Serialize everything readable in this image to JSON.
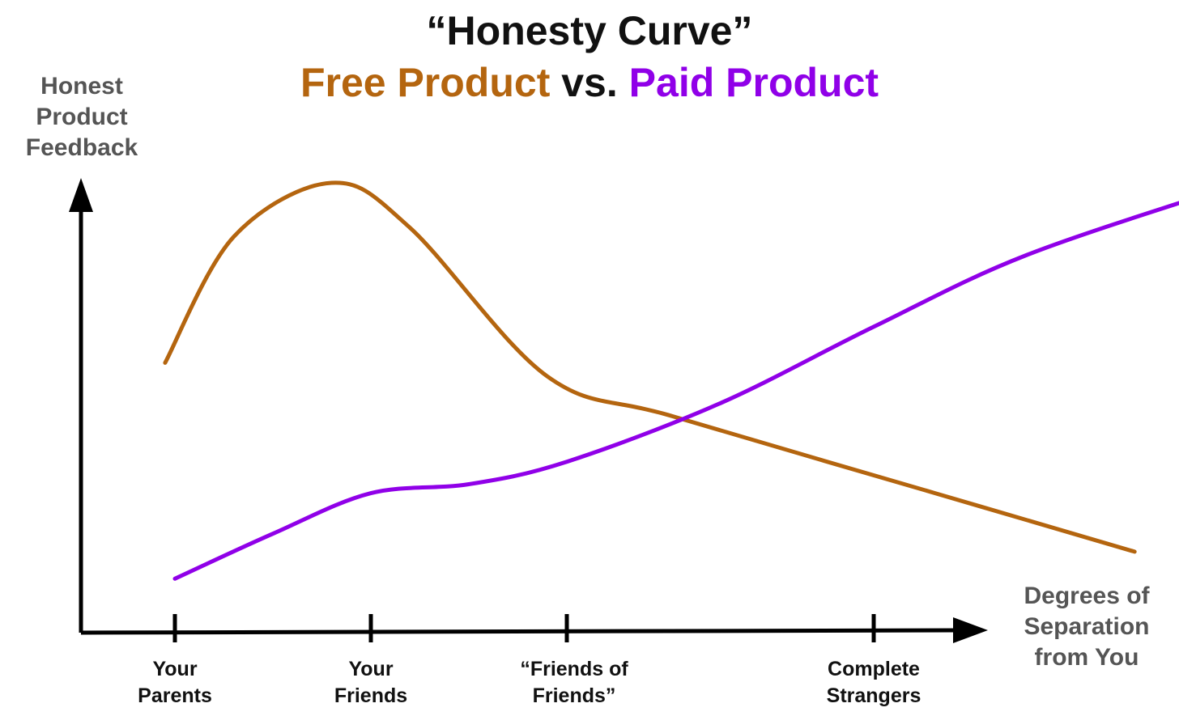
{
  "chart_data": {
    "type": "line",
    "title": "“Honesty Curve”",
    "subtitle": {
      "part1": "Free Product",
      "part2": " vs. ",
      "part3": "Paid Product"
    },
    "ylabel": "Honest\nProduct\nFeedback",
    "xlabel": "Degrees of\nSeparation\nfrom You",
    "categories": [
      "Your\nParents",
      "Your\nFriends",
      "“Friends of\nFriends”",
      "Complete\nStrangers"
    ],
    "grid": false,
    "legend": "none",
    "series": [
      {
        "name": "Free Product",
        "color": "#b4650f",
        "points": [
          [
            -0.05,
            0.6
          ],
          [
            0.3,
            0.88
          ],
          [
            0.8,
            1.0
          ],
          [
            1.2,
            0.9
          ],
          [
            1.9,
            0.57
          ],
          [
            2.35,
            0.48
          ],
          [
            3.2,
            0.31
          ],
          [
            3.85,
            0.18
          ]
        ]
      },
      {
        "name": "Paid Product",
        "color": "#9000e8",
        "points": [
          [
            0.0,
            0.12
          ],
          [
            0.5,
            0.22
          ],
          [
            1.0,
            0.31
          ],
          [
            1.5,
            0.33
          ],
          [
            2.0,
            0.38
          ],
          [
            2.5,
            0.51
          ],
          [
            3.0,
            0.68
          ],
          [
            3.5,
            0.84
          ],
          [
            4.2,
            1.0
          ]
        ]
      }
    ]
  },
  "colors": {
    "axis": "#000000",
    "free": "#b4650f",
    "paid": "#9000e8"
  }
}
